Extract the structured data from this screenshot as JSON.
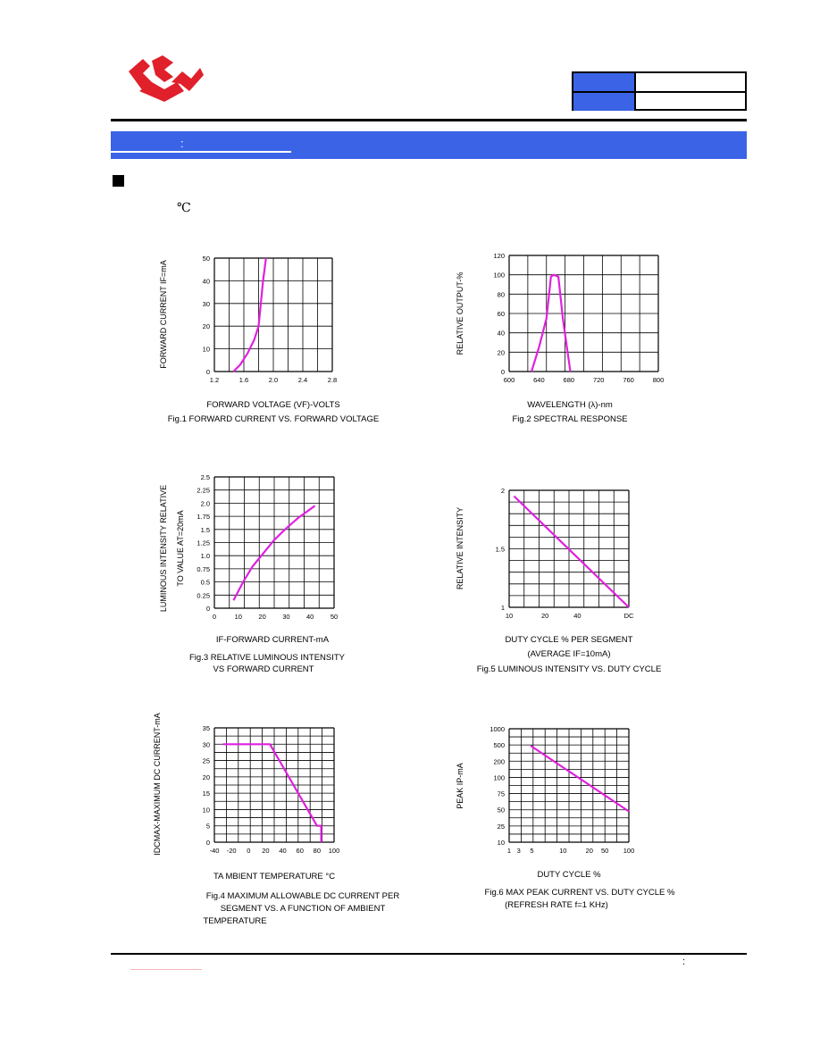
{
  "header": {
    "logo_icon": "company-logo",
    "colors": {
      "accent": "#3b63e6",
      "logo": "#e0202a",
      "curve": "#e020e0"
    }
  },
  "section": {
    "colon": ":",
    "unit_symbol": "℃"
  },
  "footer": {
    "colon": ":"
  },
  "chart_data": [
    {
      "id": "fig1",
      "type": "line",
      "ylabel": "FORWARD  CURRENT  IF=mA",
      "xlabel": "FORWARD  VOLTAGE  (VF)-VOLTS",
      "caption": "Fig.1  FORWARD  CURRENT  VS.  FORWARD  VOLTAGE",
      "xticks": [
        "1.2",
        "1.6",
        "2.0",
        "2.4",
        "2.8"
      ],
      "yticks": [
        "0",
        "10",
        "20",
        "30",
        "40",
        "50"
      ],
      "xlim": [
        1.2,
        2.8
      ],
      "ylim": [
        0,
        50
      ],
      "series": [
        {
          "x": [
            1.46,
            1.55,
            1.65,
            1.74,
            1.8,
            1.83,
            1.86,
            1.9
          ],
          "y": [
            0,
            3,
            8,
            14,
            20,
            30,
            40,
            50
          ]
        }
      ]
    },
    {
      "id": "fig2",
      "type": "line",
      "ylabel": "RELATIVE  OUTPUT-%",
      "xlabel": "WAVELENGTH  (λ)-nm",
      "caption": "Fig.2  SPECTRAL  RESPONSE",
      "xticks": [
        "600",
        "640",
        "680",
        "720",
        "760",
        "800"
      ],
      "yticks": [
        "0",
        "20",
        "40",
        "60",
        "80",
        "100",
        "120"
      ],
      "xlim": [
        600,
        800
      ],
      "ylim": [
        0,
        120
      ],
      "series": [
        {
          "x": [
            630,
            640,
            650,
            656,
            660,
            666,
            672,
            682
          ],
          "y": [
            0,
            25,
            55,
            98,
            100,
            98,
            55,
            0
          ]
        }
      ]
    },
    {
      "id": "fig3",
      "type": "line",
      "ylabel": "LUMINOUS  INTENSITY  RELATIVE",
      "ylabel2": "TO  VALUE  AT=20mA",
      "xlabel": "IF-FORWARD  CURRENT-mA",
      "caption": "Fig.3  RELATIVE  LUMINOUS  INTENSITY",
      "caption2": "VS  FORWARD  CURRENT",
      "xticks": [
        "0",
        "10",
        "20",
        "30",
        "40",
        "50"
      ],
      "yticks": [
        "0",
        "0.25",
        "0.5",
        "0.75",
        "1.0",
        "1.25",
        "1.5",
        "1.75",
        "2.0",
        "2.25",
        "2.5"
      ],
      "xlim": [
        0,
        50
      ],
      "ylim": [
        0,
        2.5
      ],
      "series": [
        {
          "x": [
            8,
            12,
            16,
            20,
            25,
            30,
            35,
            42
          ],
          "y": [
            0.15,
            0.5,
            0.8,
            1.02,
            1.3,
            1.52,
            1.72,
            1.95
          ]
        }
      ]
    },
    {
      "id": "fig5",
      "type": "line",
      "ylabel": "RELATIVE  INTENSITY",
      "xlabel": "DUTY  CYCLE  %  PER  SEGMENT",
      "xlabel2": "(AVERAGE  IF=10mA)",
      "caption": "Fig.5  LUMINOUS  INTENSITY  VS.  DUTY  CYCLE",
      "xticks": [
        "10",
        "20",
        "40",
        "DC"
      ],
      "yticks": [
        "1",
        "1.5",
        "2"
      ],
      "xlim": [
        0,
        10
      ],
      "ylim": [
        1,
        2
      ],
      "series": [
        {
          "x": [
            0.4,
            10
          ],
          "y": [
            1.95,
            1.0
          ]
        }
      ]
    },
    {
      "id": "fig4",
      "type": "line",
      "ylabel": "IDCMAX-MAXIMUM  DC  CURRENT-mA",
      "xlabel": "TA  MBIENT  TEMPERATURE  °C",
      "caption": "Fig.4  MAXIMUM  ALLOWABLE  DC  CURRENT  PER",
      "caption2": "SEGMENT  VS.  A  FUNCTION  OF  AMBIENT",
      "caption3": "TEMPERATURE",
      "xticks": [
        "-40",
        "-20",
        "0",
        "20",
        "40",
        "60",
        "80",
        "100"
      ],
      "yticks": [
        "0",
        "5",
        "10",
        "15",
        "20",
        "25",
        "30",
        "35"
      ],
      "xlim": [
        -40,
        100
      ],
      "ylim": [
        0,
        35
      ],
      "series": [
        {
          "x": [
            -30,
            25,
            80,
            85,
            85
          ],
          "y": [
            30,
            30,
            5,
            5,
            0
          ]
        }
      ]
    },
    {
      "id": "fig6",
      "type": "line",
      "ylabel": "PEAK  IP-mA",
      "xlabel": "DUTY  CYCLE  %",
      "caption": "Fig.6  MAX  PEAK  CURRENT  VS.  DUTY  CYCLE  %",
      "caption2": "(REFRESH  RATE  f=1  KHz)",
      "xticks": [
        "1",
        "3",
        "5",
        "10",
        "20",
        "50",
        "100"
      ],
      "yticks": [
        "10",
        "25",
        "50",
        "75",
        "100",
        "200",
        "500",
        "1000"
      ],
      "xlim": [
        0,
        10
      ],
      "ylim": [
        0,
        7
      ],
      "series": [
        {
          "x": [
            1.8,
            10
          ],
          "y": [
            5.95,
            1.9
          ]
        }
      ]
    }
  ]
}
